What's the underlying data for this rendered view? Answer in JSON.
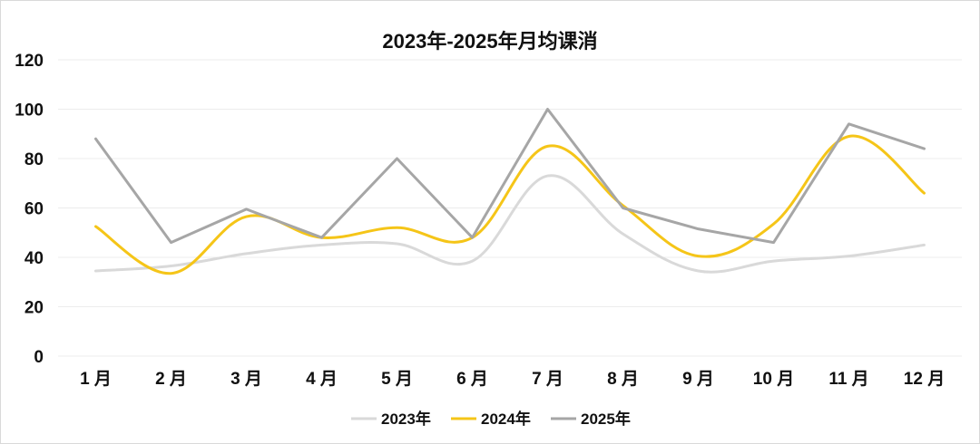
{
  "chart_data": {
    "type": "line",
    "title": "2023年-2025年月均课消",
    "categories": [
      "1 月",
      "2 月",
      "3 月",
      "4 月",
      "5 月",
      "6 月",
      "7 月",
      "8 月",
      "9 月",
      "10 月",
      "11 月",
      "12 月"
    ],
    "y_ticks": [
      "0",
      "20",
      "40",
      "60",
      "80",
      "100",
      "120"
    ],
    "ylim": [
      0,
      120
    ],
    "grid": true,
    "legend_position": "bottom",
    "series": [
      {
        "name": "2023年",
        "color": "#d9d9d9",
        "smooth": true,
        "values": [
          34.5,
          36.5,
          41.5,
          45,
          45.5,
          38.5,
          73,
          49.5,
          34.5,
          38.5,
          40.5,
          45
        ]
      },
      {
        "name": "2024年",
        "color": "#f5c518",
        "smooth": true,
        "values": [
          52.5,
          33.5,
          56.5,
          48,
          52,
          48,
          85,
          61,
          40.5,
          53.5,
          89,
          66
        ]
      },
      {
        "name": "2025年",
        "color": "#a6a6a6",
        "smooth": false,
        "values": [
          88,
          46,
          59.5,
          48,
          80,
          48,
          100,
          60,
          51.5,
          46,
          94,
          84
        ]
      }
    ]
  }
}
